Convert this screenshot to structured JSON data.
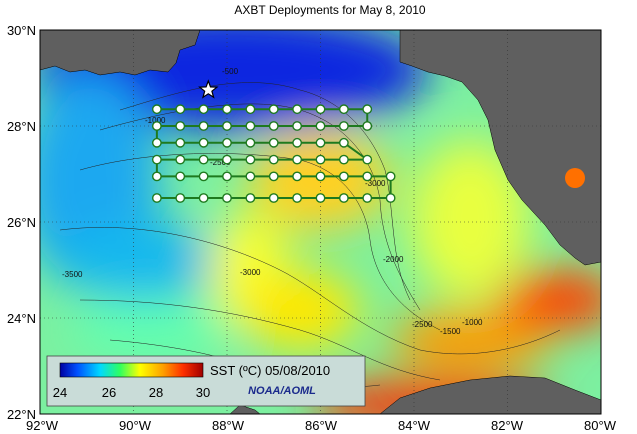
{
  "title": "AXBT Deployments for May 8, 2010",
  "axes": {
    "lat_ticks": [
      "30°N",
      "28°N",
      "26°N",
      "24°N",
      "22°N"
    ],
    "lon_ticks": [
      "92°W",
      "90°W",
      "88°W",
      "86°W",
      "84°W",
      "82°W",
      "80°W"
    ],
    "lat_range": [
      22,
      30
    ],
    "lon_range": [
      -92,
      -80
    ]
  },
  "legend": {
    "label": "SST (ºC) 05/08/2010",
    "ticks": [
      "24",
      "26",
      "28",
      "30"
    ],
    "range": [
      23.5,
      30.5
    ],
    "credit": "NOAA/AOML",
    "credit_color": "#1a2a8c"
  },
  "colors": {
    "land": "#5f5f5f",
    "track": "#1e7a1e",
    "station_fill": "#ffffff",
    "grid": "#333333"
  },
  "contour_labels": [
    "-500",
    "-1000",
    "-1500",
    "-2000",
    "-2500",
    "-3000",
    "-3500"
  ],
  "marker": {
    "icon": "star-icon",
    "lon": -88.4,
    "lat": 28.75
  },
  "stations": {
    "rows": [
      {
        "lat": 28.35,
        "lons": [
          -89.5,
          -89.0,
          -88.5,
          -88.0,
          -87.5,
          -87.0,
          -86.5,
          -86.0,
          -85.5,
          -85.0
        ]
      },
      {
        "lat": 28.0,
        "lons": [
          -89.5,
          -89.0,
          -88.5,
          -88.0,
          -87.5,
          -87.0,
          -86.5,
          -86.0,
          -85.5,
          -85.0
        ]
      },
      {
        "lat": 27.65,
        "lons": [
          -89.5,
          -89.0,
          -88.5,
          -88.0,
          -87.5,
          -87.0,
          -86.5,
          -86.0,
          -85.5
        ]
      },
      {
        "lat": 27.3,
        "lons": [
          -89.5,
          -89.0,
          -88.5,
          -88.0,
          -87.5,
          -87.0,
          -86.5,
          -86.0,
          -85.5,
          -85.0
        ]
      },
      {
        "lat": 26.95,
        "lons": [
          -89.5,
          -89.0,
          -88.5,
          -88.0,
          -87.5,
          -87.0,
          -86.5,
          -86.0,
          -85.5,
          -85.0,
          -84.5
        ]
      },
      {
        "lat": 26.5,
        "lons": [
          -89.5,
          -89.0,
          -88.5,
          -88.0,
          -87.5,
          -87.0,
          -86.5,
          -86.0,
          -85.5,
          -85.0,
          -84.5
        ]
      }
    ]
  }
}
